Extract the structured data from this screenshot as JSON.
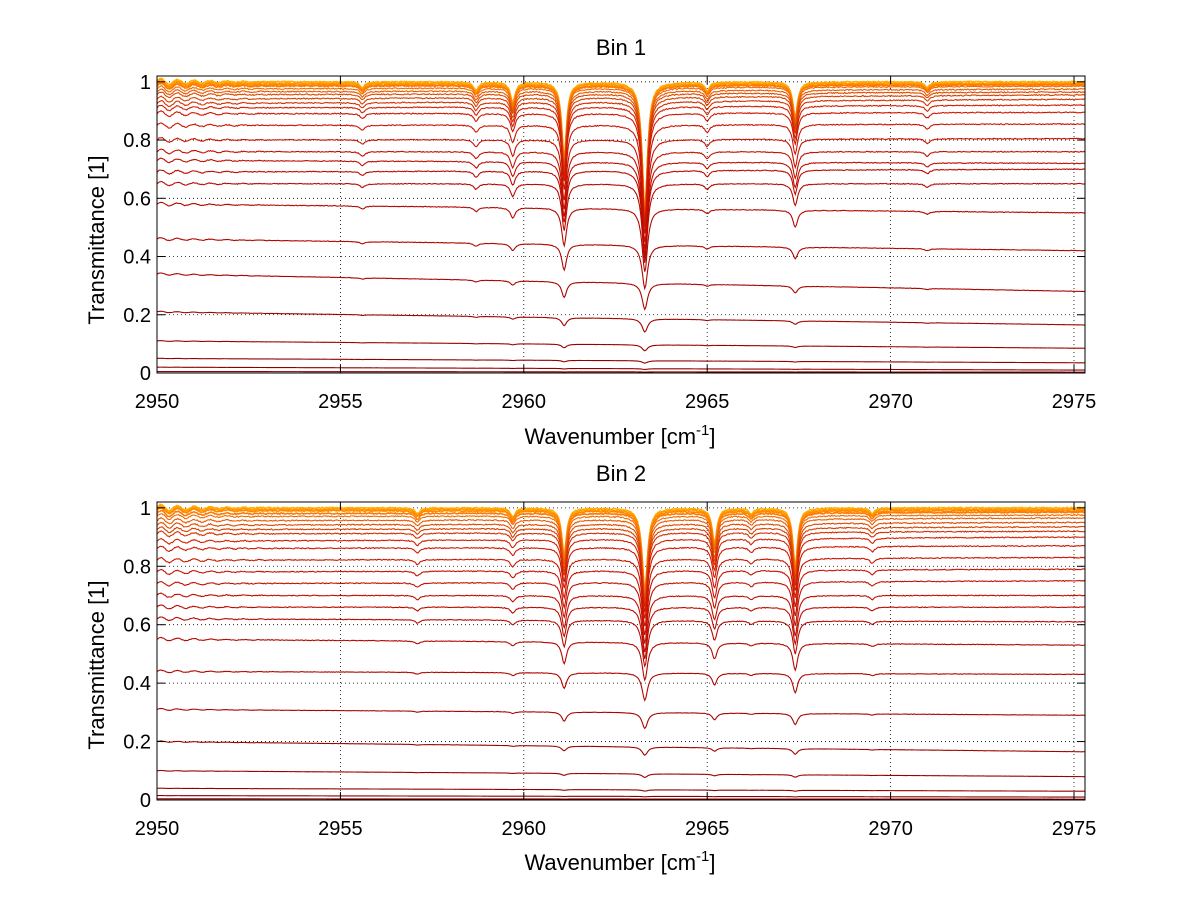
{
  "colors": {
    "background": "#ffffff",
    "axes": "#000000",
    "grid": "#000000",
    "series_low": "#8b0000",
    "series_mid": "#d42000",
    "series_high": "#ff7f00",
    "series_top": "#ffb000"
  },
  "chart_data": [
    {
      "type": "line",
      "title": "Bin 1",
      "xlabel_main": "Wavenumber [cm",
      "xlabel_sup": "-1",
      "xlabel_end": "]",
      "ylabel": "Transmittance [1]",
      "xlim": [
        2950,
        2975.3
      ],
      "ylim": [
        0,
        1.02
      ],
      "xticks": [
        2950,
        2955,
        2960,
        2965,
        2970,
        2975
      ],
      "xtick_labels": [
        "2950",
        "2955",
        "2960",
        "2965",
        "2970",
        "2975"
      ],
      "yticks": [
        0,
        0.2,
        0.4,
        0.6,
        0.8,
        1
      ],
      "ytick_labels": [
        "0",
        "0.2",
        "0.4",
        "0.6",
        "0.8",
        "1"
      ],
      "grid": true,
      "legend": "none",
      "absorption_lines": [
        {
          "center": 2958.7,
          "depth": 0.03,
          "width": 0.08
        },
        {
          "center": 2959.7,
          "depth": 0.07,
          "width": 0.08
        },
        {
          "center": 2961.1,
          "depth": 0.26,
          "width": 0.08
        },
        {
          "center": 2963.3,
          "depth": 0.44,
          "width": 0.09
        },
        {
          "center": 2965.0,
          "depth": 0.03,
          "width": 0.08
        },
        {
          "center": 2967.4,
          "depth": 0.12,
          "width": 0.08
        },
        {
          "center": 2955.6,
          "depth": 0.02,
          "width": 0.08
        },
        {
          "center": 2971.0,
          "depth": 0.02,
          "width": 0.08
        }
      ],
      "series": [
        {
          "start": 1.0,
          "end": 1.0,
          "color": "#ffb000"
        },
        {
          "start": 0.995,
          "end": 0.995,
          "color": "#ff9a00"
        },
        {
          "start": 0.99,
          "end": 0.99,
          "color": "#ff8800"
        },
        {
          "start": 0.985,
          "end": 0.99,
          "color": "#ff7a00"
        },
        {
          "start": 0.975,
          "end": 0.985,
          "color": "#f06a00"
        },
        {
          "start": 0.965,
          "end": 0.975,
          "color": "#e85a00"
        },
        {
          "start": 0.955,
          "end": 0.965,
          "color": "#e04a00"
        },
        {
          "start": 0.94,
          "end": 0.955,
          "color": "#d84000"
        },
        {
          "start": 0.925,
          "end": 0.94,
          "color": "#d43000"
        },
        {
          "start": 0.91,
          "end": 0.92,
          "color": "#d42000"
        },
        {
          "start": 0.89,
          "end": 0.895,
          "color": "#d01800"
        },
        {
          "start": 0.85,
          "end": 0.855,
          "color": "#cc1500"
        },
        {
          "start": 0.8,
          "end": 0.805,
          "color": "#c81200"
        },
        {
          "start": 0.76,
          "end": 0.76,
          "color": "#c41000"
        },
        {
          "start": 0.73,
          "end": 0.72,
          "color": "#c00e00"
        },
        {
          "start": 0.69,
          "end": 0.7,
          "color": "#bc0c00"
        },
        {
          "start": 0.65,
          "end": 0.65,
          "color": "#b80a00"
        },
        {
          "start": 0.58,
          "end": 0.55,
          "color": "#b40800"
        },
        {
          "start": 0.46,
          "end": 0.42,
          "color": "#b00600"
        },
        {
          "start": 0.34,
          "end": 0.28,
          "color": "#a80500"
        },
        {
          "start": 0.21,
          "end": 0.165,
          "color": "#a00400"
        },
        {
          "start": 0.11,
          "end": 0.085,
          "color": "#980300"
        },
        {
          "start": 0.05,
          "end": 0.035,
          "color": "#900200"
        },
        {
          "start": 0.02,
          "end": 0.01,
          "color": "#8b0000"
        },
        {
          "start": 0.005,
          "end": 0.003,
          "color": "#8b0000"
        }
      ]
    },
    {
      "type": "line",
      "title": "Bin 2",
      "xlabel_main": "Wavenumber [cm",
      "xlabel_sup": "-1",
      "xlabel_end": "]",
      "ylabel": "Transmittance [1]",
      "xlim": [
        2950,
        2975.3
      ],
      "ylim": [
        0,
        1.02
      ],
      "xticks": [
        2950,
        2955,
        2960,
        2965,
        2970,
        2975
      ],
      "xtick_labels": [
        "2950",
        "2955",
        "2960",
        "2965",
        "2970",
        "2975"
      ],
      "yticks": [
        0,
        0.2,
        0.4,
        0.6,
        0.8,
        1
      ],
      "ytick_labels": [
        "0",
        "0.2",
        "0.4",
        "0.6",
        "0.8",
        "1"
      ],
      "grid": true,
      "legend": "none",
      "absorption_lines": [
        {
          "center": 2957.1,
          "depth": 0.02,
          "width": 0.08
        },
        {
          "center": 2959.7,
          "depth": 0.03,
          "width": 0.08
        },
        {
          "center": 2961.1,
          "depth": 0.16,
          "width": 0.08
        },
        {
          "center": 2963.3,
          "depth": 0.28,
          "width": 0.09
        },
        {
          "center": 2965.2,
          "depth": 0.12,
          "width": 0.08
        },
        {
          "center": 2967.4,
          "depth": 0.2,
          "width": 0.08
        },
        {
          "center": 2966.2,
          "depth": 0.02,
          "width": 0.08
        },
        {
          "center": 2969.5,
          "depth": 0.02,
          "width": 0.08
        }
      ],
      "series": [
        {
          "start": 1.0,
          "end": 1.0,
          "color": "#ffb000"
        },
        {
          "start": 0.995,
          "end": 0.995,
          "color": "#ff9a00"
        },
        {
          "start": 0.99,
          "end": 0.99,
          "color": "#ff8800"
        },
        {
          "start": 0.98,
          "end": 0.985,
          "color": "#ff7a00"
        },
        {
          "start": 0.97,
          "end": 0.975,
          "color": "#f06a00"
        },
        {
          "start": 0.955,
          "end": 0.965,
          "color": "#e85a00"
        },
        {
          "start": 0.94,
          "end": 0.95,
          "color": "#e04a00"
        },
        {
          "start": 0.925,
          "end": 0.935,
          "color": "#d84000"
        },
        {
          "start": 0.91,
          "end": 0.92,
          "color": "#d43000"
        },
        {
          "start": 0.885,
          "end": 0.9,
          "color": "#d42000"
        },
        {
          "start": 0.86,
          "end": 0.87,
          "color": "#d01800"
        },
        {
          "start": 0.82,
          "end": 0.83,
          "color": "#cc1500"
        },
        {
          "start": 0.78,
          "end": 0.79,
          "color": "#c81200"
        },
        {
          "start": 0.74,
          "end": 0.75,
          "color": "#c41000"
        },
        {
          "start": 0.7,
          "end": 0.7,
          "color": "#c00e00"
        },
        {
          "start": 0.66,
          "end": 0.66,
          "color": "#bc0c00"
        },
        {
          "start": 0.62,
          "end": 0.61,
          "color": "#b80a00"
        },
        {
          "start": 0.55,
          "end": 0.53,
          "color": "#b40800"
        },
        {
          "start": 0.44,
          "end": 0.43,
          "color": "#b00600"
        },
        {
          "start": 0.31,
          "end": 0.29,
          "color": "#a80500"
        },
        {
          "start": 0.2,
          "end": 0.165,
          "color": "#a00400"
        },
        {
          "start": 0.1,
          "end": 0.08,
          "color": "#980300"
        },
        {
          "start": 0.04,
          "end": 0.03,
          "color": "#900200"
        },
        {
          "start": 0.015,
          "end": 0.01,
          "color": "#8b0000"
        },
        {
          "start": 0.004,
          "end": 0.003,
          "color": "#8b0000"
        }
      ]
    }
  ]
}
